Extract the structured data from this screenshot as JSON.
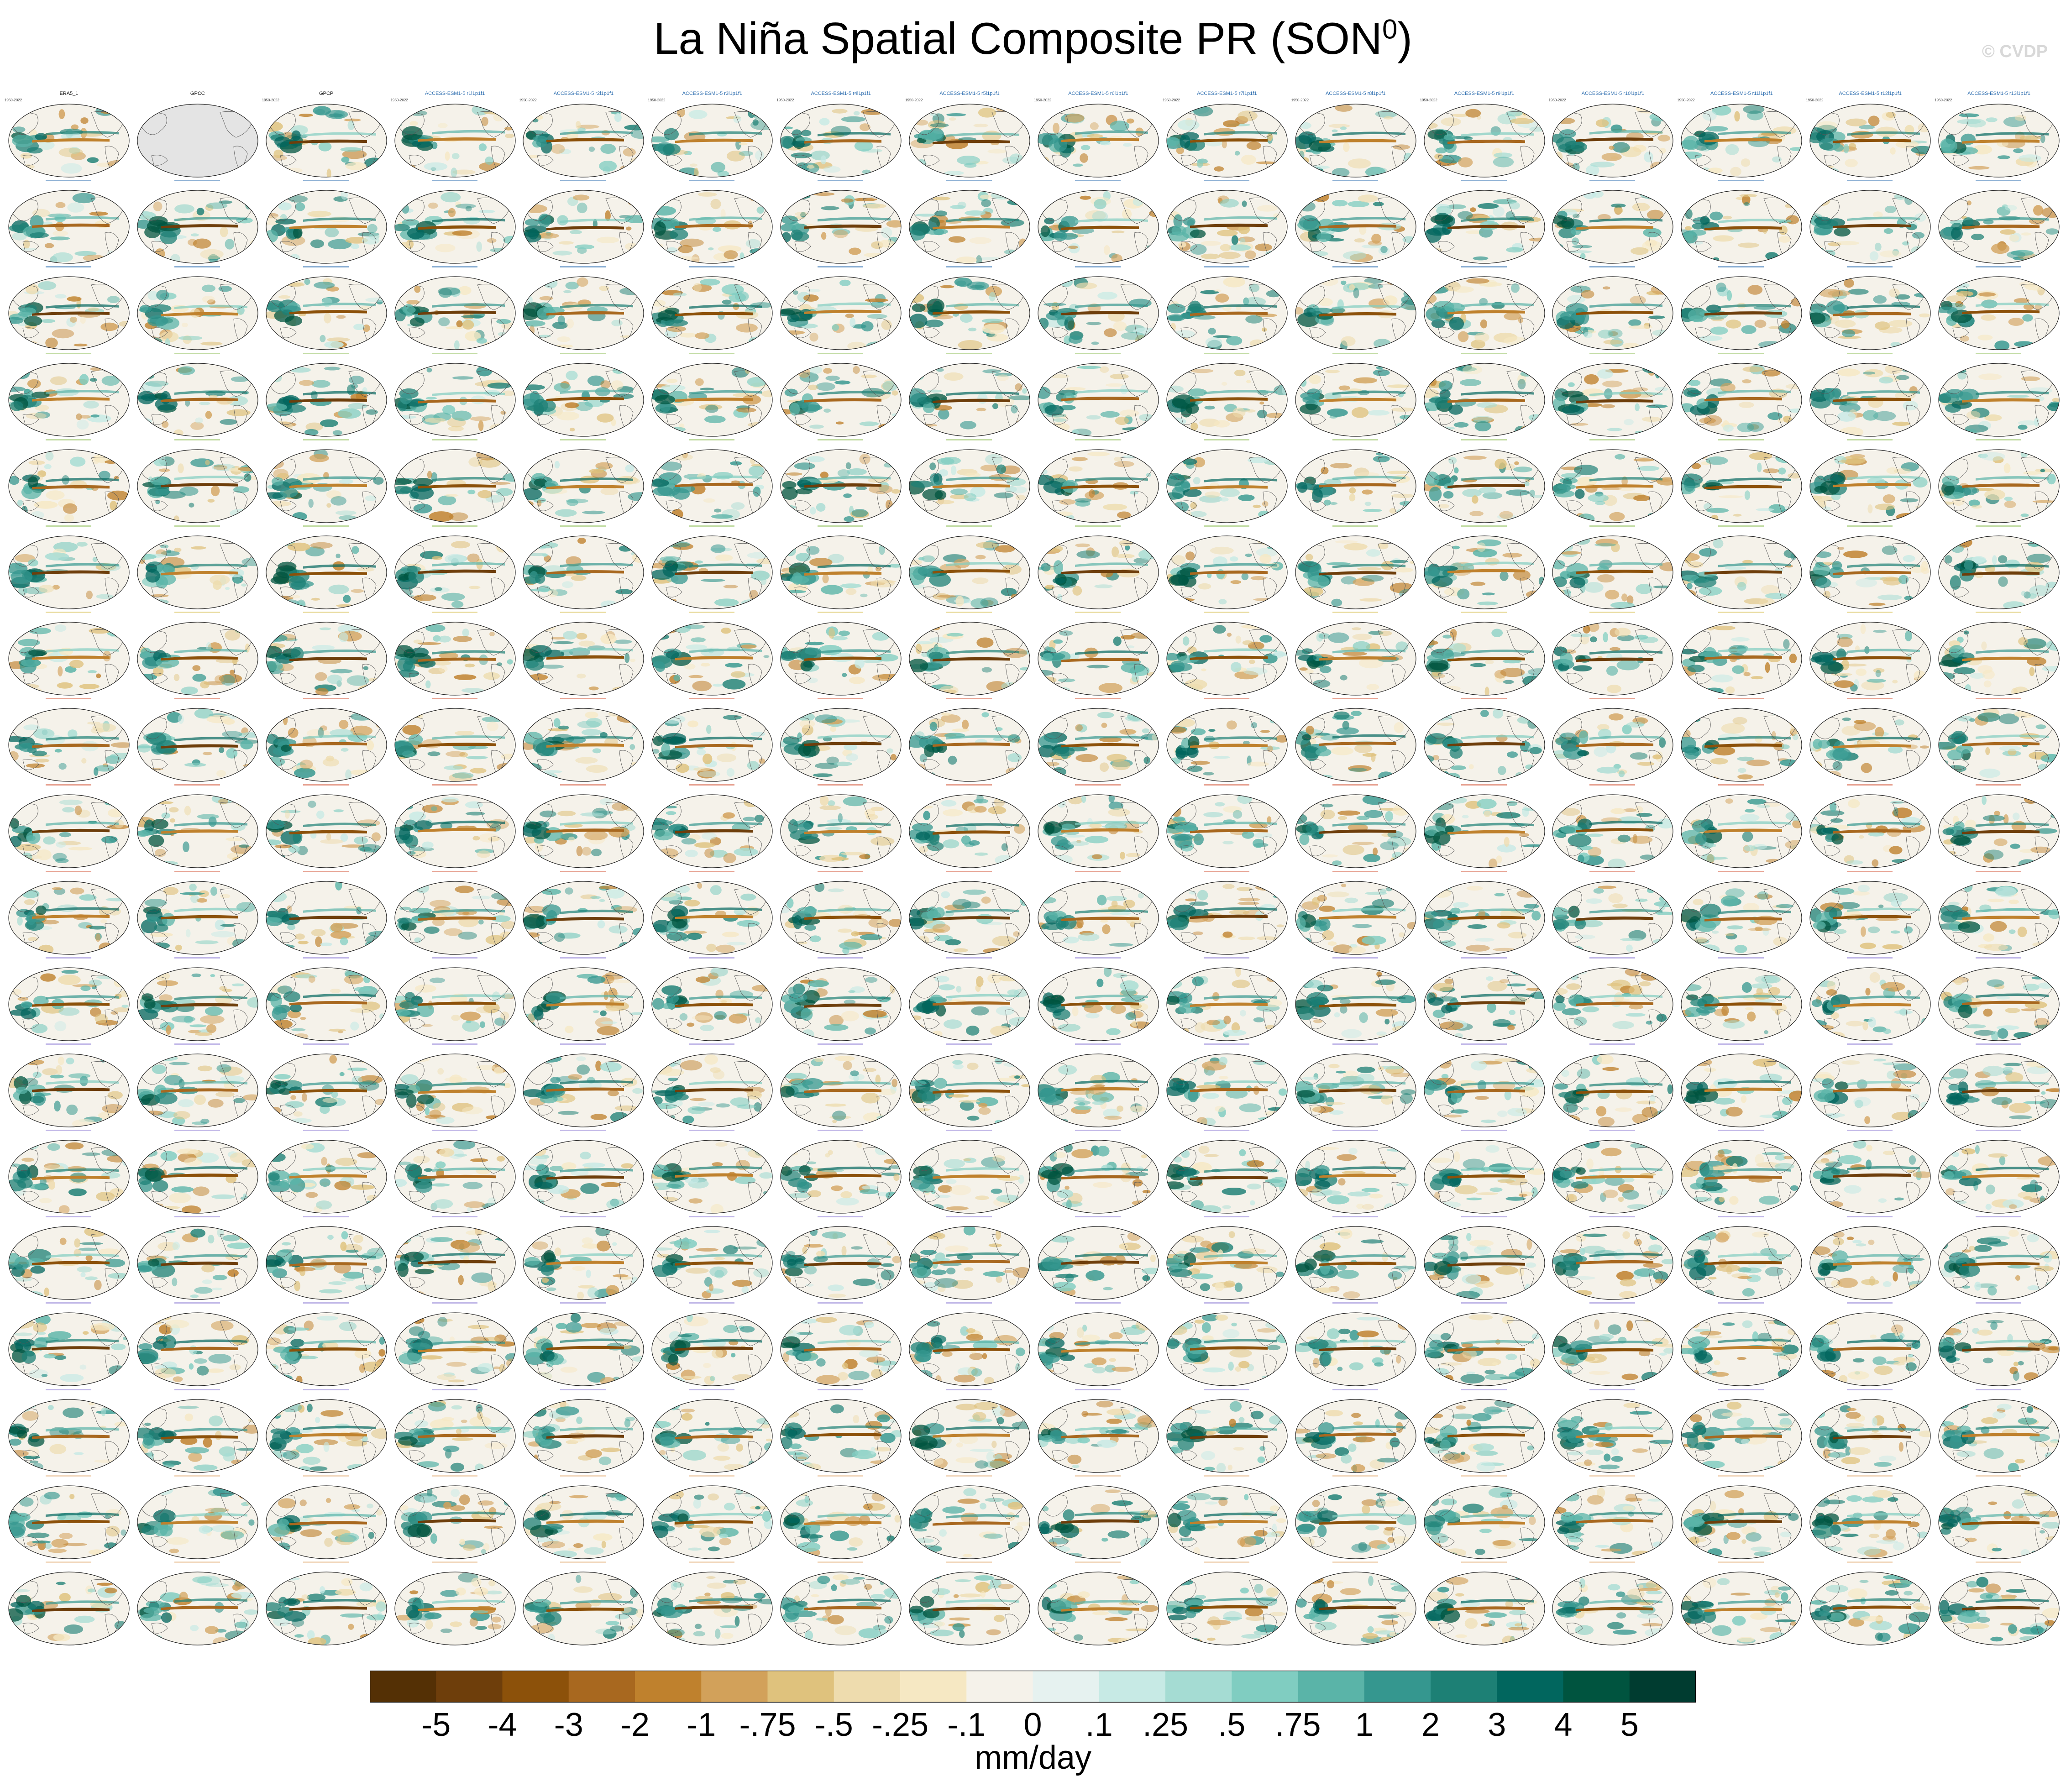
{
  "figure": {
    "title_main": "La Niña Spatial Composite PR (SON",
    "title_sup": "0",
    "title_end": ")",
    "watermark": "© CVDP",
    "units": "mm/day"
  },
  "colorbar": {
    "tick_labels": [
      "-5",
      "-4",
      "-3",
      "-2",
      "-1",
      "-.75",
      "-.5",
      "-.25",
      "-.1",
      "0",
      ".1",
      ".25",
      ".5",
      ".75",
      "1",
      "2",
      "3",
      "4",
      "5"
    ],
    "colors": [
      "#543005",
      "#6e3e0b",
      "#8c510a",
      "#a8681f",
      "#bf812d",
      "#d2a15a",
      "#dfc27d",
      "#eedcae",
      "#f6e8c3",
      "#f5f2ea",
      "#e6f2f0",
      "#c7eae5",
      "#a5dcd3",
      "#80cdc1",
      "#5ab4a8",
      "#35978f",
      "#1d8075",
      "#01665e",
      "#00543f",
      "#003c30"
    ]
  },
  "chart_data": {
    "type": "heatmap",
    "description_type": "panel grid of global precipitation composite maps",
    "rows": 18,
    "cols": 16,
    "units": "mm/day",
    "panels_row1": [
      {
        "title": "ERA5_1",
        "period": "1950-2022"
      },
      {
        "title": "GPCC",
        "period": ""
      },
      {
        "title": "GPCP",
        "period": "1950-2022"
      },
      {
        "title": "ACCESS-ESM1-5 r1i1p1f1",
        "period": "1950-2022"
      },
      {
        "title": "ACCESS-ESM1-5 r2i1p1f1",
        "period": "1950-2022"
      },
      {
        "title": "ACCESS-ESM1-5 r3i1p1f1",
        "period": "1950-2022"
      },
      {
        "title": "ACCESS-ESM1-5 r4i1p1f1",
        "period": "1950-2022"
      },
      {
        "title": "ACCESS-ESM1-5 r5i1p1f1",
        "period": "1950-2022"
      },
      {
        "title": "ACCESS-ESM1-5 r6i1p1f1",
        "period": "1950-2022"
      },
      {
        "title": "ACCESS-ESM1-5 r7i1p1f1",
        "period": "1950-2022"
      },
      {
        "title": "ACCESS-ESM1-5 r8i1p1f1",
        "period": "1950-2022"
      },
      {
        "title": "ACCESS-ESM1-5 r9i1p1f1",
        "period": "1950-2022"
      },
      {
        "title": "ACCESS-ESM1-5 r10i1p1f1",
        "period": "1950-2022"
      },
      {
        "title": "ACCESS-ESM1-5 r11i1p1f1",
        "period": "1950-2022"
      },
      {
        "title": "ACCESS-ESM1-5 r12i1p1f1",
        "period": "1950-2022"
      },
      {
        "title": "ACCESS-ESM1-5 r13i1p1f1",
        "period": "1950-2022"
      }
    ],
    "model_groups": [
      {
        "name": "ACCESS-ESM1-5",
        "title_color": "#2f6fb0"
      },
      {
        "name": "CanESM5",
        "title_color": "#8fbf5a"
      },
      {
        "name": "CanESM5 (late)",
        "title_color": "#d9c35a"
      },
      {
        "name": "CESM1",
        "title_color": "#d4583a"
      },
      {
        "name": "CESM2",
        "title_color": "#8f7fd6"
      },
      {
        "name": "CESM2 (late)",
        "title_color": "#e7b98a"
      }
    ],
    "row_group_index": [
      0,
      0,
      0,
      1,
      1,
      1,
      2,
      3,
      3,
      3,
      4,
      4,
      4,
      4,
      4,
      4,
      5,
      5
    ]
  }
}
